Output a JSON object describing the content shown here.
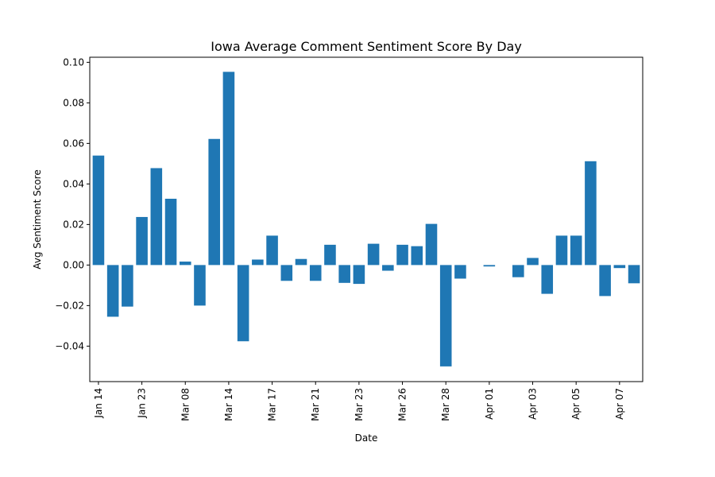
{
  "chart_data": {
    "type": "bar",
    "title": "Iowa Average Comment Sentiment Score By Day",
    "xlabel": "Date",
    "ylabel": "Avg Sentiment Score",
    "ylim": [
      -0.0575,
      0.1025
    ],
    "yticks": [
      -0.04,
      -0.02,
      0.0,
      0.02,
      0.04,
      0.06,
      0.08,
      0.1
    ],
    "ytick_labels": [
      "−0.04",
      "−0.02",
      "0.00",
      "0.02",
      "0.04",
      "0.06",
      "0.08",
      "0.10"
    ],
    "x_tick_labels": [
      "Jan 14",
      "Jan 23",
      "Mar 08",
      "Mar 14",
      "Mar 17",
      "Mar 21",
      "Mar 23",
      "Mar 26",
      "Mar 28",
      "Apr 01",
      "Apr 03",
      "Apr 05",
      "Apr 07"
    ],
    "x_tick_every": 3,
    "values": [
      0.054,
      -0.0255,
      -0.0205,
      0.0237,
      0.0478,
      0.0327,
      0.0017,
      -0.02,
      0.0622,
      0.0953,
      -0.0376,
      0.0027,
      0.0145,
      -0.0078,
      0.003,
      -0.0078,
      0.01,
      -0.0088,
      -0.0093,
      0.0105,
      -0.0028,
      0.01,
      0.0093,
      0.0203,
      -0.05,
      -0.0067,
      0.0,
      -0.0007,
      0.0,
      -0.006,
      0.0035,
      -0.0142,
      0.0145,
      0.0145,
      0.0512,
      -0.0153,
      -0.0015,
      -0.009
    ],
    "bar_color": "#1f77b4",
    "grid": false
  }
}
